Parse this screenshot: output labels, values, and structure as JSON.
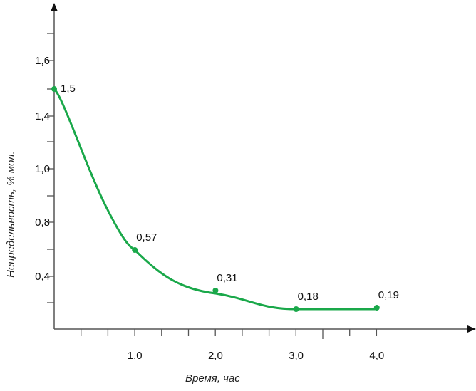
{
  "chart_data": {
    "type": "line",
    "title": "",
    "xlabel": "Время, час",
    "ylabel": "Непредельность, % мол.",
    "x_tick_labels": [
      "1,0",
      "2,0",
      "3,0",
      "4,0"
    ],
    "y_tick_labels": [
      "1,6",
      "1,4",
      "1,0",
      "0,8",
      "0,4"
    ],
    "series": [
      {
        "name": "Непредельность",
        "color": "#1aa84a",
        "x": [
          0,
          1,
          2,
          3,
          4
        ],
        "y": [
          1.5,
          0.57,
          0.31,
          0.18,
          0.19
        ],
        "labels": [
          "1,5",
          "0,57",
          "0,31",
          "0,18",
          "0,19"
        ]
      }
    ],
    "grid": false
  }
}
